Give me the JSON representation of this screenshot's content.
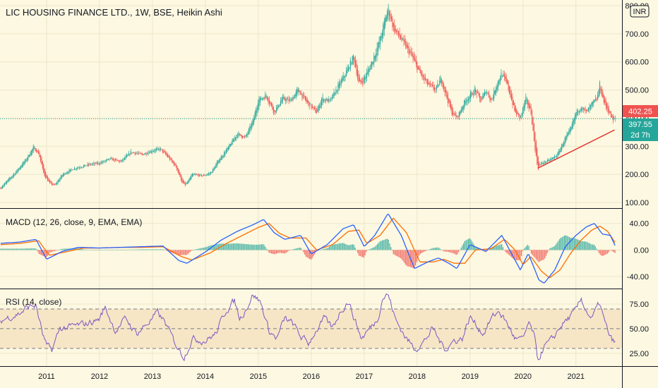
{
  "header": {
    "title": "LIC HOUSING FINANCE LTD., 1W, BSE, Heikin Ashi",
    "currency": "INR"
  },
  "colors": {
    "background": "#fdf8e1",
    "up": "#26a69a",
    "down": "#ef5350",
    "macd_line": "#2962ff",
    "signal_line": "#ff6d00",
    "rsi_line": "#7e57c2",
    "rsi_band": "#f5e3c1",
    "trendline": "#e53935",
    "grid": "#ece6c9"
  },
  "badges": {
    "current_price": "402.25",
    "last_close": "397.55",
    "countdown": "2d 7h"
  },
  "chart_data": [
    {
      "name": "price",
      "type": "candlestick",
      "title": "LIC HOUSING FINANCE LTD., 1W, BSE, Heikin Ashi",
      "ylim": [
        80,
        820
      ],
      "y_ticks": [
        "100.00",
        "200.00",
        "300.00",
        "400.00",
        "500.00",
        "600.00",
        "700.00",
        "800.00"
      ],
      "x_ticks": [
        "2011",
        "2012",
        "2013",
        "2014",
        "2015",
        "2016",
        "2017",
        "2018",
        "2019",
        "2020",
        "2021"
      ],
      "x_range": [
        2010.12,
        2021.75
      ],
      "price_line": 397.55,
      "anchors": [
        [
          2010.12,
          150
        ],
        [
          2010.4,
          205
        ],
        [
          2010.6,
          250
        ],
        [
          2010.75,
          295
        ],
        [
          2010.85,
          275
        ],
        [
          2010.95,
          200
        ],
        [
          2011.05,
          170
        ],
        [
          2011.15,
          160
        ],
        [
          2011.3,
          200
        ],
        [
          2011.5,
          220
        ],
        [
          2011.8,
          235
        ],
        [
          2012.0,
          240
        ],
        [
          2012.2,
          255
        ],
        [
          2012.4,
          245
        ],
        [
          2012.6,
          280
        ],
        [
          2012.8,
          270
        ],
        [
          2013.0,
          285
        ],
        [
          2013.15,
          290
        ],
        [
          2013.3,
          260
        ],
        [
          2013.45,
          225
        ],
        [
          2013.55,
          175
        ],
        [
          2013.62,
          160
        ],
        [
          2013.75,
          200
        ],
        [
          2013.95,
          195
        ],
        [
          2014.1,
          205
        ],
        [
          2014.25,
          250
        ],
        [
          2014.45,
          300
        ],
        [
          2014.6,
          345
        ],
        [
          2014.75,
          330
        ],
        [
          2014.9,
          390
        ],
        [
          2015.0,
          465
        ],
        [
          2015.15,
          480
        ],
        [
          2015.3,
          420
        ],
        [
          2015.45,
          470
        ],
        [
          2015.6,
          460
        ],
        [
          2015.75,
          500
        ],
        [
          2015.9,
          460
        ],
        [
          2016.1,
          420
        ],
        [
          2016.2,
          470
        ],
        [
          2016.35,
          460
        ],
        [
          2016.5,
          510
        ],
        [
          2016.65,
          560
        ],
        [
          2016.8,
          620
        ],
        [
          2016.9,
          520
        ],
        [
          2017.0,
          540
        ],
        [
          2017.15,
          600
        ],
        [
          2017.3,
          680
        ],
        [
          2017.45,
          790
        ],
        [
          2017.55,
          720
        ],
        [
          2017.7,
          680
        ],
        [
          2017.9,
          620
        ],
        [
          2018.05,
          560
        ],
        [
          2018.2,
          520
        ],
        [
          2018.35,
          500
        ],
        [
          2018.45,
          540
        ],
        [
          2018.55,
          480
        ],
        [
          2018.65,
          420
        ],
        [
          2018.75,
          400
        ],
        [
          2018.9,
          460
        ],
        [
          2019.1,
          500
        ],
        [
          2019.2,
          460
        ],
        [
          2019.3,
          500
        ],
        [
          2019.4,
          460
        ],
        [
          2019.5,
          520
        ],
        [
          2019.6,
          560
        ],
        [
          2019.7,
          520
        ],
        [
          2019.85,
          420
        ],
        [
          2019.95,
          400
        ],
        [
          2020.05,
          470
        ],
        [
          2020.15,
          420
        ],
        [
          2020.22,
          300
        ],
        [
          2020.28,
          220
        ],
        [
          2020.35,
          240
        ],
        [
          2020.5,
          250
        ],
        [
          2020.65,
          270
        ],
        [
          2020.8,
          330
        ],
        [
          2020.9,
          360
        ],
        [
          2021.0,
          420
        ],
        [
          2021.1,
          440
        ],
        [
          2021.2,
          420
        ],
        [
          2021.3,
          450
        ],
        [
          2021.4,
          470
        ],
        [
          2021.45,
          520
        ],
        [
          2021.52,
          460
        ],
        [
          2021.6,
          430
        ],
        [
          2021.7,
          390
        ],
        [
          2021.75,
          400
        ]
      ],
      "trendline": [
        [
          2020.28,
          222
        ],
        [
          2021.73,
          358
        ]
      ]
    },
    {
      "name": "macd",
      "type": "line",
      "title": "MACD (12, 26, close, 9, EMA, EMA)",
      "ylim": [
        -58,
        62
      ],
      "y_ticks": [
        "40.00",
        "0.00",
        "-40.00"
      ],
      "series": [
        {
          "role": "macd",
          "anchors": [
            [
              2010.12,
              10
            ],
            [
              2010.5,
              12
            ],
            [
              2010.8,
              16
            ],
            [
              2011.0,
              -14
            ],
            [
              2011.3,
              -2
            ],
            [
              2011.6,
              4
            ],
            [
              2012.0,
              3
            ],
            [
              2012.4,
              4
            ],
            [
              2012.8,
              5
            ],
            [
              2013.2,
              6
            ],
            [
              2013.5,
              -16
            ],
            [
              2013.65,
              -20
            ],
            [
              2014.0,
              -3
            ],
            [
              2014.3,
              15
            ],
            [
              2014.6,
              28
            ],
            [
              2014.9,
              38
            ],
            [
              2015.1,
              46
            ],
            [
              2015.3,
              26
            ],
            [
              2015.5,
              16
            ],
            [
              2015.8,
              22
            ],
            [
              2016.0,
              -6
            ],
            [
              2016.3,
              8
            ],
            [
              2016.6,
              32
            ],
            [
              2016.8,
              38
            ],
            [
              2017.0,
              5
            ],
            [
              2017.2,
              22
            ],
            [
              2017.45,
              55
            ],
            [
              2017.7,
              22
            ],
            [
              2017.95,
              -28
            ],
            [
              2018.2,
              -18
            ],
            [
              2018.4,
              -12
            ],
            [
              2018.6,
              -20
            ],
            [
              2018.75,
              -28
            ],
            [
              2019.0,
              8
            ],
            [
              2019.3,
              -2
            ],
            [
              2019.6,
              22
            ],
            [
              2019.8,
              -8
            ],
            [
              2019.95,
              -30
            ],
            [
              2020.1,
              -5
            ],
            [
              2020.3,
              -45
            ],
            [
              2020.4,
              -50
            ],
            [
              2020.6,
              -30
            ],
            [
              2020.8,
              5
            ],
            [
              2021.0,
              22
            ],
            [
              2021.2,
              35
            ],
            [
              2021.35,
              40
            ],
            [
              2021.5,
              24
            ],
            [
              2021.65,
              22
            ],
            [
              2021.75,
              5
            ]
          ]
        },
        {
          "role": "signal",
          "anchors": [
            [
              2010.12,
              8
            ],
            [
              2010.5,
              10
            ],
            [
              2010.85,
              14
            ],
            [
              2011.05,
              -8
            ],
            [
              2011.35,
              -3
            ],
            [
              2011.7,
              3
            ],
            [
              2012.0,
              3
            ],
            [
              2012.4,
              4
            ],
            [
              2012.8,
              4
            ],
            [
              2013.2,
              5
            ],
            [
              2013.55,
              -10
            ],
            [
              2013.75,
              -15
            ],
            [
              2014.1,
              -4
            ],
            [
              2014.4,
              10
            ],
            [
              2014.7,
              22
            ],
            [
              2015.0,
              34
            ],
            [
              2015.2,
              40
            ],
            [
              2015.4,
              25
            ],
            [
              2015.6,
              18
            ],
            [
              2015.9,
              18
            ],
            [
              2016.1,
              0
            ],
            [
              2016.4,
              8
            ],
            [
              2016.7,
              28
            ],
            [
              2016.9,
              30
            ],
            [
              2017.05,
              10
            ],
            [
              2017.3,
              22
            ],
            [
              2017.55,
              48
            ],
            [
              2017.8,
              26
            ],
            [
              2018.05,
              -18
            ],
            [
              2018.3,
              -18
            ],
            [
              2018.5,
              -14
            ],
            [
              2018.7,
              -20
            ],
            [
              2018.9,
              -20
            ],
            [
              2019.1,
              0
            ],
            [
              2019.4,
              2
            ],
            [
              2019.65,
              16
            ],
            [
              2019.85,
              0
            ],
            [
              2020.0,
              -22
            ],
            [
              2020.15,
              -10
            ],
            [
              2020.35,
              -32
            ],
            [
              2020.5,
              -42
            ],
            [
              2020.7,
              -30
            ],
            [
              2020.9,
              -5
            ],
            [
              2021.1,
              15
            ],
            [
              2021.3,
              30
            ],
            [
              2021.45,
              36
            ],
            [
              2021.6,
              28
            ],
            [
              2021.75,
              10
            ]
          ]
        }
      ]
    },
    {
      "name": "rsi",
      "type": "line",
      "title": "RSI (14, close)",
      "ylim": [
        12,
        90
      ],
      "y_ticks": [
        "75.00",
        "50.00",
        "25.00"
      ],
      "bands": [
        70,
        50,
        30
      ],
      "anchors": [
        [
          2010.12,
          58
        ],
        [
          2010.3,
          62
        ],
        [
          2010.5,
          66
        ],
        [
          2010.65,
          72
        ],
        [
          2010.8,
          74
        ],
        [
          2010.92,
          45
        ],
        [
          2011.0,
          32
        ],
        [
          2011.1,
          28
        ],
        [
          2011.25,
          50
        ],
        [
          2011.5,
          52
        ],
        [
          2011.75,
          55
        ],
        [
          2012.0,
          60
        ],
        [
          2012.1,
          72
        ],
        [
          2012.3,
          48
        ],
        [
          2012.5,
          60
        ],
        [
          2012.7,
          45
        ],
        [
          2012.9,
          55
        ],
        [
          2013.1,
          66
        ],
        [
          2013.25,
          55
        ],
        [
          2013.4,
          38
        ],
        [
          2013.55,
          25
        ],
        [
          2013.6,
          22
        ],
        [
          2013.75,
          40
        ],
        [
          2014.0,
          38
        ],
        [
          2014.2,
          45
        ],
        [
          2014.4,
          70
        ],
        [
          2014.55,
          78
        ],
        [
          2014.65,
          60
        ],
        [
          2014.8,
          74
        ],
        [
          2014.9,
          85
        ],
        [
          2015.05,
          76
        ],
        [
          2015.2,
          48
        ],
        [
          2015.35,
          40
        ],
        [
          2015.5,
          60
        ],
        [
          2015.65,
          55
        ],
        [
          2015.8,
          42
        ],
        [
          2015.95,
          35
        ],
        [
          2016.05,
          45
        ],
        [
          2016.25,
          60
        ],
        [
          2016.4,
          50
        ],
        [
          2016.55,
          68
        ],
        [
          2016.7,
          78
        ],
        [
          2016.85,
          55
        ],
        [
          2016.95,
          40
        ],
        [
          2017.1,
          50
        ],
        [
          2017.25,
          60
        ],
        [
          2017.35,
          82
        ],
        [
          2017.45,
          85
        ],
        [
          2017.6,
          58
        ],
        [
          2017.8,
          40
        ],
        [
          2017.95,
          30
        ],
        [
          2018.1,
          35
        ],
        [
          2018.3,
          50
        ],
        [
          2018.45,
          35
        ],
        [
          2018.55,
          30
        ],
        [
          2018.7,
          38
        ],
        [
          2018.85,
          40
        ],
        [
          2019.0,
          62
        ],
        [
          2019.1,
          55
        ],
        [
          2019.25,
          45
        ],
        [
          2019.4,
          60
        ],
        [
          2019.55,
          68
        ],
        [
          2019.7,
          55
        ],
        [
          2019.85,
          40
        ],
        [
          2020.0,
          38
        ],
        [
          2020.1,
          55
        ],
        [
          2020.2,
          45
        ],
        [
          2020.28,
          18
        ],
        [
          2020.4,
          32
        ],
        [
          2020.55,
          38
        ],
        [
          2020.7,
          52
        ],
        [
          2020.85,
          60
        ],
        [
          2021.0,
          68
        ],
        [
          2021.1,
          80
        ],
        [
          2021.2,
          68
        ],
        [
          2021.3,
          60
        ],
        [
          2021.45,
          76
        ],
        [
          2021.55,
          55
        ],
        [
          2021.65,
          40
        ],
        [
          2021.75,
          35
        ]
      ]
    }
  ]
}
